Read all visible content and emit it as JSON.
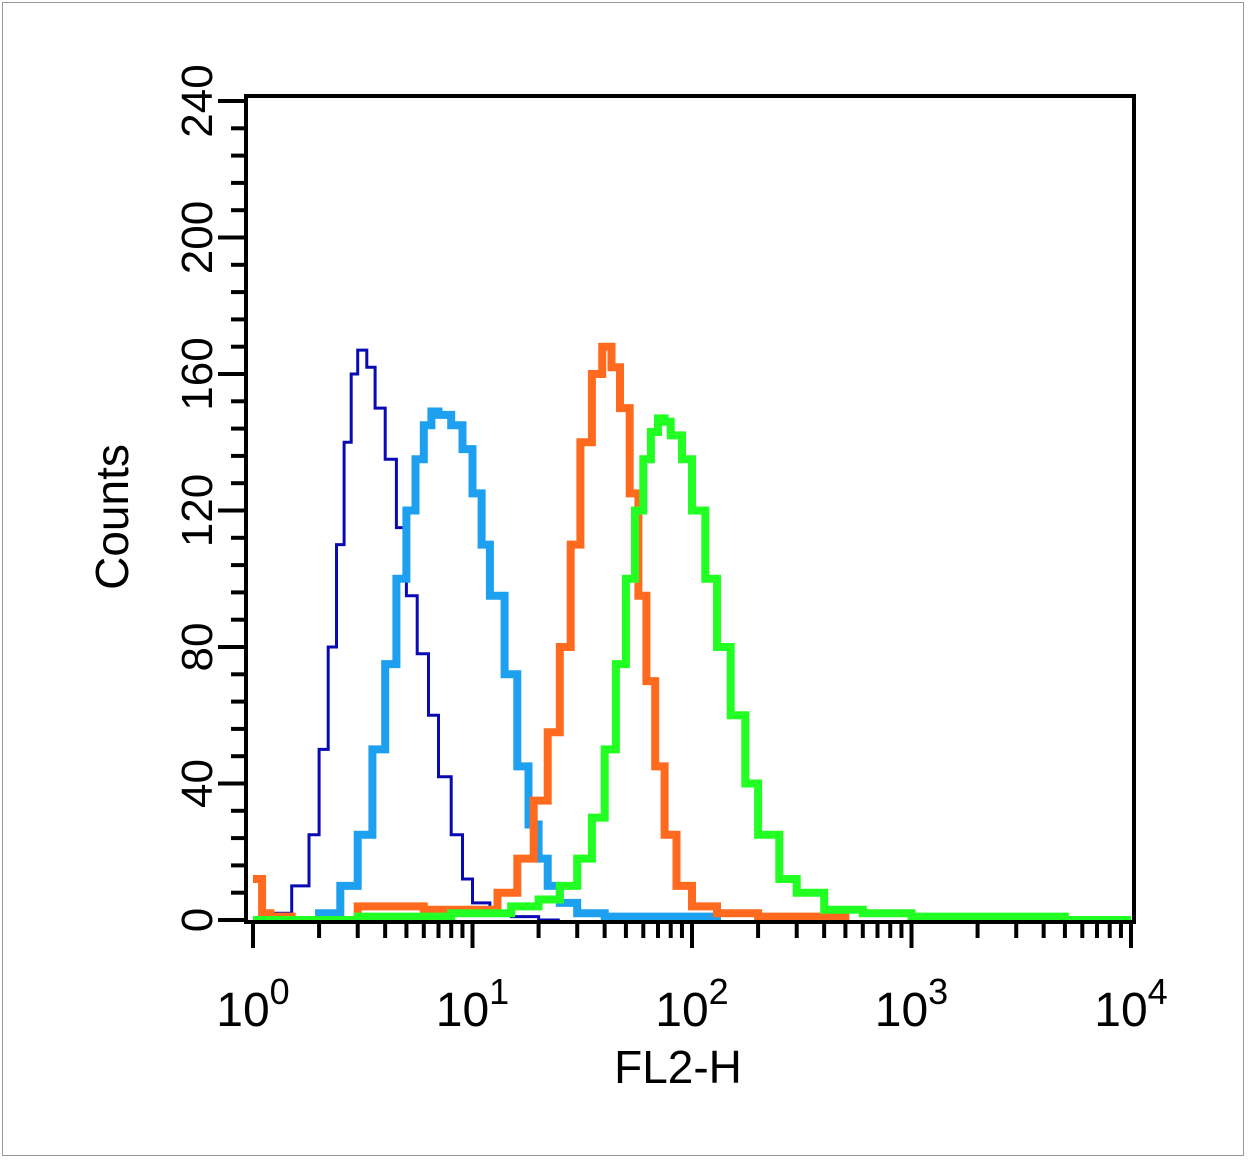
{
  "chart_data": {
    "type": "line",
    "title": "",
    "xlabel": "FL2-H",
    "ylabel": "Counts",
    "x_scale": "log",
    "xlim": [
      1,
      10000
    ],
    "ylim": [
      0,
      240
    ],
    "grid": false,
    "x_ticks": [
      {
        "base": "10",
        "exp": "0",
        "value": 1
      },
      {
        "base": "10",
        "exp": "1",
        "value": 10
      },
      {
        "base": "10",
        "exp": "2",
        "value": 100
      },
      {
        "base": "10",
        "exp": "3",
        "value": 1000
      },
      {
        "base": "10",
        "exp": "4",
        "value": 10000
      }
    ],
    "y_ticks": [
      "0",
      "40",
      "80",
      "120",
      "160",
      "200",
      "240"
    ],
    "series": [
      {
        "color": "#0a0ab4",
        "style": "thin",
        "x": [
          1.2,
          1.5,
          1.8,
          2.0,
          2.2,
          2.4,
          2.6,
          2.8,
          3.0,
          3.3,
          3.6,
          4.0,
          4.5,
          5.0,
          5.6,
          6.3,
          7.0,
          8.0,
          9.0,
          10,
          12,
          15,
          20,
          25
        ],
        "y": [
          2,
          10,
          25,
          50,
          80,
          110,
          140,
          160,
          167,
          162,
          150,
          135,
          115,
          95,
          78,
          60,
          42,
          25,
          12,
          5,
          2,
          1,
          0,
          0
        ]
      },
      {
        "color": "#1ea0f0",
        "style": "thick",
        "x": [
          1.5,
          2.0,
          2.5,
          3.0,
          3.5,
          4.0,
          4.5,
          5.0,
          5.5,
          6.0,
          6.5,
          7.0,
          8.0,
          9.0,
          10,
          11,
          12,
          14,
          16,
          18,
          20,
          22,
          25,
          30,
          40,
          60,
          100,
          130
        ],
        "y": [
          0,
          2,
          10,
          25,
          50,
          75,
          100,
          120,
          135,
          145,
          149,
          148,
          145,
          138,
          125,
          110,
          95,
          72,
          45,
          28,
          18,
          10,
          5,
          2,
          1,
          1,
          1,
          0
        ]
      },
      {
        "color": "#ff6a1e",
        "style": "thick",
        "x": [
          1.0,
          1.1,
          1.2,
          1.5,
          3,
          6,
          10,
          13,
          16,
          19,
          22,
          25,
          28,
          31,
          35,
          39,
          43,
          47,
          52,
          57,
          62,
          68,
          75,
          85,
          100,
          130,
          200,
          300,
          500
        ],
        "y": [
          12,
          2,
          1,
          0,
          4,
          3,
          3,
          8,
          18,
          35,
          55,
          80,
          110,
          140,
          160,
          168,
          162,
          150,
          125,
          95,
          70,
          45,
          25,
          10,
          4,
          2,
          1,
          1,
          0
        ]
      },
      {
        "color": "#22ff22",
        "style": "thick",
        "x": [
          1.0,
          3,
          8,
          15,
          20,
          25,
          30,
          35,
          40,
          45,
          50,
          55,
          60,
          65,
          70,
          75,
          80,
          90,
          100,
          115,
          130,
          150,
          175,
          200,
          250,
          300,
          400,
          600,
          1000,
          2000,
          5000,
          10000
        ],
        "y": [
          0,
          1,
          2,
          4,
          6,
          10,
          18,
          30,
          50,
          75,
          100,
          120,
          135,
          143,
          147,
          146,
          142,
          135,
          120,
          100,
          80,
          60,
          40,
          25,
          12,
          8,
          3,
          2,
          1,
          1,
          0,
          0
        ]
      }
    ]
  }
}
